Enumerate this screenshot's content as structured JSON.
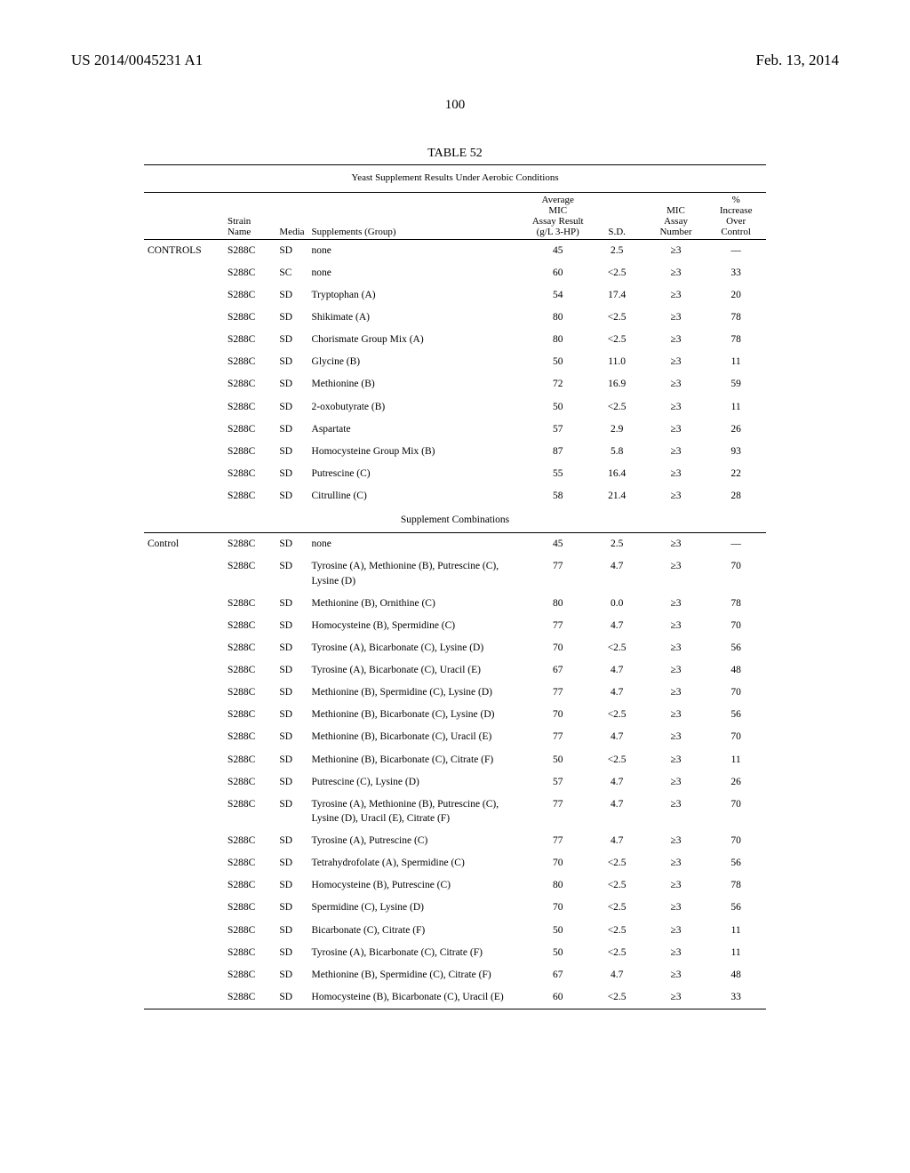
{
  "header": {
    "left": "US 2014/0045231 A1",
    "right": "Feb. 13, 2014"
  },
  "page_number": "100",
  "table": {
    "label": "TABLE 52",
    "caption": "Yeast Supplement Results Under Aerobic Conditions",
    "columns": {
      "category": "",
      "strain": "Strain\nName",
      "media": "Media",
      "supplements": "Supplements (Group)",
      "avg": "Average MIC\nAssay Result\n(g/L 3-HP)",
      "sd": "S.D.",
      "assay_num": "MIC\nAssay\nNumber",
      "increase": "%\nIncrease\nOver\nControl"
    },
    "section1_label": "CONTROLS",
    "rows1": [
      {
        "strain": "S288C",
        "media": "SD",
        "sup": "none",
        "avg": "45",
        "sd": "2.5",
        "num": "≥3",
        "inc": "—"
      },
      {
        "strain": "S288C",
        "media": "SC",
        "sup": "none",
        "avg": "60",
        "sd": "<2.5",
        "num": "≥3",
        "inc": "33"
      },
      {
        "strain": "S288C",
        "media": "SD",
        "sup": "Tryptophan (A)",
        "avg": "54",
        "sd": "17.4",
        "num": "≥3",
        "inc": "20"
      },
      {
        "strain": "S288C",
        "media": "SD",
        "sup": "Shikimate (A)",
        "avg": "80",
        "sd": "<2.5",
        "num": "≥3",
        "inc": "78"
      },
      {
        "strain": "S288C",
        "media": "SD",
        "sup": "Chorismate Group Mix (A)",
        "avg": "80",
        "sd": "<2.5",
        "num": "≥3",
        "inc": "78"
      },
      {
        "strain": "S288C",
        "media": "SD",
        "sup": "Glycine (B)",
        "avg": "50",
        "sd": "11.0",
        "num": "≥3",
        "inc": "11"
      },
      {
        "strain": "S288C",
        "media": "SD",
        "sup": "Methionine (B)",
        "avg": "72",
        "sd": "16.9",
        "num": "≥3",
        "inc": "59"
      },
      {
        "strain": "S288C",
        "media": "SD",
        "sup": "2-oxobutyrate (B)",
        "avg": "50",
        "sd": "<2.5",
        "num": "≥3",
        "inc": "11"
      },
      {
        "strain": "S288C",
        "media": "SD",
        "sup": "Aspartate",
        "avg": "57",
        "sd": "2.9",
        "num": "≥3",
        "inc": "26"
      },
      {
        "strain": "S288C",
        "media": "SD",
        "sup": "Homocysteine Group Mix (B)",
        "avg": "87",
        "sd": "5.8",
        "num": "≥3",
        "inc": "93"
      },
      {
        "strain": "S288C",
        "media": "SD",
        "sup": "Putrescine (C)",
        "avg": "55",
        "sd": "16.4",
        "num": "≥3",
        "inc": "22"
      },
      {
        "strain": "S288C",
        "media": "SD",
        "sup": "Citrulline (C)",
        "avg": "58",
        "sd": "21.4",
        "num": "≥3",
        "inc": "28"
      }
    ],
    "mid_section": "Supplement Combinations",
    "section2_label": "Control",
    "rows2": [
      {
        "strain": "S288C",
        "media": "SD",
        "sup": "none",
        "avg": "45",
        "sd": "2.5",
        "num": "≥3",
        "inc": "—"
      },
      {
        "strain": "S288C",
        "media": "SD",
        "sup": "Tyrosine (A), Methionine (B), Putrescine (C), Lysine (D)",
        "avg": "77",
        "sd": "4.7",
        "num": "≥3",
        "inc": "70"
      },
      {
        "strain": "S288C",
        "media": "SD",
        "sup": "Methionine (B), Ornithine (C)",
        "avg": "80",
        "sd": "0.0",
        "num": "≥3",
        "inc": "78"
      },
      {
        "strain": "S288C",
        "media": "SD",
        "sup": "Homocysteine (B), Spermidine (C)",
        "avg": "77",
        "sd": "4.7",
        "num": "≥3",
        "inc": "70"
      },
      {
        "strain": "S288C",
        "media": "SD",
        "sup": "Tyrosine (A), Bicarbonate (C), Lysine (D)",
        "avg": "70",
        "sd": "<2.5",
        "num": "≥3",
        "inc": "56"
      },
      {
        "strain": "S288C",
        "media": "SD",
        "sup": "Tyrosine (A), Bicarbonate (C), Uracil (E)",
        "avg": "67",
        "sd": "4.7",
        "num": "≥3",
        "inc": "48"
      },
      {
        "strain": "S288C",
        "media": "SD",
        "sup": "Methionine (B), Spermidine (C), Lysine (D)",
        "avg": "77",
        "sd": "4.7",
        "num": "≥3",
        "inc": "70"
      },
      {
        "strain": "S288C",
        "media": "SD",
        "sup": "Methionine (B), Bicarbonate (C), Lysine (D)",
        "avg": "70",
        "sd": "<2.5",
        "num": "≥3",
        "inc": "56"
      },
      {
        "strain": "S288C",
        "media": "SD",
        "sup": "Methionine (B), Bicarbonate (C), Uracil (E)",
        "avg": "77",
        "sd": "4.7",
        "num": "≥3",
        "inc": "70"
      },
      {
        "strain": "S288C",
        "media": "SD",
        "sup": "Methionine (B), Bicarbonate (C), Citrate (F)",
        "avg": "50",
        "sd": "<2.5",
        "num": "≥3",
        "inc": "11"
      },
      {
        "strain": "S288C",
        "media": "SD",
        "sup": "Putrescine (C), Lysine (D)",
        "avg": "57",
        "sd": "4.7",
        "num": "≥3",
        "inc": "26"
      },
      {
        "strain": "S288C",
        "media": "SD",
        "sup": "Tyrosine (A), Methionine (B), Putrescine (C), Lysine (D), Uracil (E), Citrate (F)",
        "avg": "77",
        "sd": "4.7",
        "num": "≥3",
        "inc": "70"
      },
      {
        "strain": "S288C",
        "media": "SD",
        "sup": "Tyrosine (A), Putrescine (C)",
        "avg": "77",
        "sd": "4.7",
        "num": "≥3",
        "inc": "70"
      },
      {
        "strain": "S288C",
        "media": "SD",
        "sup": "Tetrahydrofolate (A), Spermidine (C)",
        "avg": "70",
        "sd": "<2.5",
        "num": "≥3",
        "inc": "56"
      },
      {
        "strain": "S288C",
        "media": "SD",
        "sup": "Homocysteine (B), Putrescine (C)",
        "avg": "80",
        "sd": "<2.5",
        "num": "≥3",
        "inc": "78"
      },
      {
        "strain": "S288C",
        "media": "SD",
        "sup": "Spermidine (C), Lysine (D)",
        "avg": "70",
        "sd": "<2.5",
        "num": "≥3",
        "inc": "56"
      },
      {
        "strain": "S288C",
        "media": "SD",
        "sup": "Bicarbonate (C), Citrate (F)",
        "avg": "50",
        "sd": "<2.5",
        "num": "≥3",
        "inc": "11"
      },
      {
        "strain": "S288C",
        "media": "SD",
        "sup": "Tyrosine (A), Bicarbonate (C), Citrate (F)",
        "avg": "50",
        "sd": "<2.5",
        "num": "≥3",
        "inc": "11"
      },
      {
        "strain": "S288C",
        "media": "SD",
        "sup": "Methionine (B), Spermidine (C), Citrate (F)",
        "avg": "67",
        "sd": "4.7",
        "num": "≥3",
        "inc": "48"
      },
      {
        "strain": "S288C",
        "media": "SD",
        "sup": "Homocysteine (B), Bicarbonate (C), Uracil (E)",
        "avg": "60",
        "sd": "<2.5",
        "num": "≥3",
        "inc": "33"
      }
    ]
  }
}
